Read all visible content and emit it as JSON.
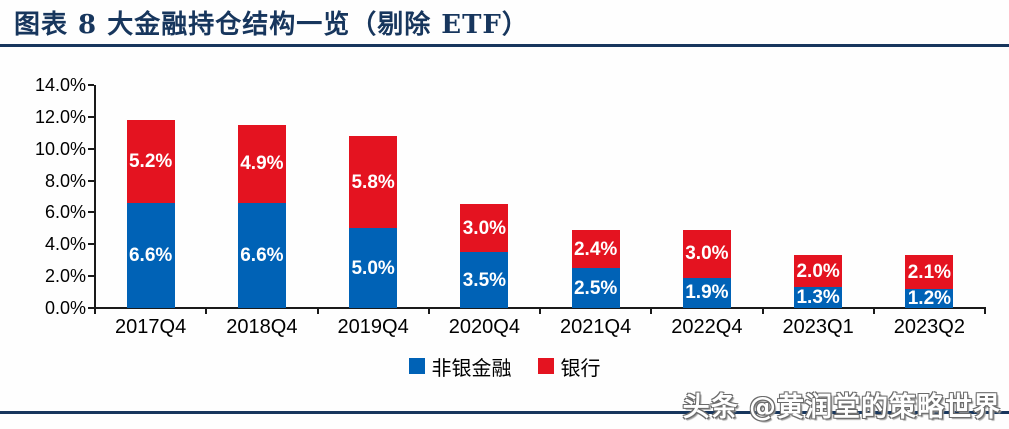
{
  "header": {
    "title": "图表 8  大金融持仓结构一览（剔除 ETF）"
  },
  "chart_data": {
    "type": "bar",
    "stacked": true,
    "title": "大金融持仓结构一览（剔除 ETF）",
    "categories": [
      "2017Q4",
      "2018Q4",
      "2019Q4",
      "2020Q4",
      "2021Q4",
      "2022Q4",
      "2023Q1",
      "2023Q2"
    ],
    "series": [
      {
        "name": "非银金融",
        "color": "#0062B6",
        "values": [
          6.6,
          6.6,
          5.0,
          3.5,
          2.5,
          1.9,
          1.3,
          1.2
        ]
      },
      {
        "name": "银行",
        "color": "#E41320",
        "values": [
          5.2,
          4.9,
          5.8,
          3.0,
          2.4,
          3.0,
          2.0,
          2.1
        ]
      }
    ],
    "totals": [
      11.8,
      11.5,
      10.8,
      6.5,
      4.9,
      4.9,
      3.3,
      3.3
    ],
    "ylim": [
      0,
      14
    ],
    "ytick_step": 2,
    "ytick_labels": [
      "0.0%",
      "2.0%",
      "4.0%",
      "6.0%",
      "8.0%",
      "10.0%",
      "12.0%",
      "14.0%"
    ],
    "value_label_suffix": "%",
    "grid": false,
    "legend_position": "bottom"
  },
  "watermark": {
    "text": "头条 @黄润堂的策略世界"
  },
  "colors": {
    "title_navy": "#17365D",
    "bar_blue": "#0062B6",
    "bar_red": "#E41320",
    "axis": "#1A1A1A"
  }
}
